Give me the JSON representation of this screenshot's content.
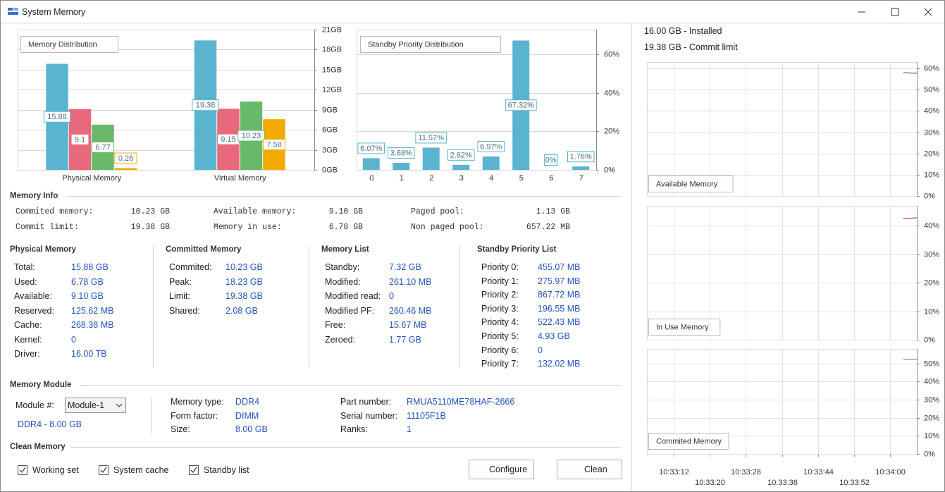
{
  "window": {
    "title": "System Memory"
  },
  "chart_data": [
    {
      "type": "bar",
      "title": "Memory Distribution",
      "categories": [
        "Physical Memory",
        "Virtual Memory"
      ],
      "series": [
        {
          "color": "#5ab4cf",
          "values": [
            15.88,
            19.38
          ]
        },
        {
          "color": "#e8687c",
          "values": [
            9.1,
            9.15
          ]
        },
        {
          "color": "#68b96a",
          "values": [
            6.77,
            10.23
          ]
        },
        {
          "color": "#f2ab00",
          "values": [
            0.26,
            7.58
          ]
        }
      ],
      "ylim": [
        0,
        21
      ],
      "yticks": [
        {
          "value": 0,
          "label": "0GB"
        },
        {
          "value": 3,
          "label": "3GB"
        },
        {
          "value": 6,
          "label": "6GB"
        },
        {
          "value": 9,
          "label": "9GB"
        },
        {
          "value": 12,
          "label": "12GB"
        },
        {
          "value": 15,
          "label": "15GB"
        },
        {
          "value": 18,
          "label": "18GB"
        },
        {
          "value": 21,
          "label": "21GB"
        }
      ],
      "grid": true
    },
    {
      "type": "bar",
      "title": "Standby Priority Distribution",
      "categories": [
        "0",
        "1",
        "2",
        "3",
        "4",
        "5",
        "6",
        "7"
      ],
      "values": [
        6.07,
        3.68,
        11.57,
        2.62,
        6.97,
        67.32,
        0,
        1.76
      ],
      "value_labels": [
        "6.07%",
        "3.68%",
        "11.57%",
        "2.62%",
        "6.97%",
        "67.32%",
        "0%",
        "1.76%"
      ],
      "color": "#5ab4cf",
      "ylim": [
        0,
        73
      ],
      "yticks": [
        {
          "value": 0,
          "label": "0%"
        },
        {
          "value": 20,
          "label": "20%"
        },
        {
          "value": 40,
          "label": "40%"
        },
        {
          "value": 60,
          "label": "60%"
        }
      ],
      "grid": true
    },
    {
      "type": "line",
      "title": "Available Memory",
      "color": "#3b6fb6",
      "x": [
        "10:34:03",
        "10:34:06"
      ],
      "values": [
        58,
        57.7
      ],
      "xlim": [
        "10:33:06",
        "10:34:06"
      ],
      "xticks": [
        "10:33:12",
        "10:33:20",
        "10:33:28",
        "10:33:36",
        "10:33:44",
        "10:33:52",
        "10:34:00"
      ],
      "ylim": [
        0,
        63
      ],
      "yticks": [
        {
          "value": 0,
          "label": "0%"
        },
        {
          "value": 10,
          "label": "10%"
        },
        {
          "value": 20,
          "label": "20%"
        },
        {
          "value": 30,
          "label": "30%"
        },
        {
          "value": 40,
          "label": "40%"
        },
        {
          "value": 50,
          "label": "50%"
        },
        {
          "value": 60,
          "label": "60%"
        }
      ],
      "grid": true
    },
    {
      "type": "line",
      "title": "In Use Memory",
      "color": "#c0392b",
      "x": [
        "10:34:03",
        "10:34:06"
      ],
      "values": [
        42.5,
        42.8
      ],
      "xlim": [
        "10:33:06",
        "10:34:06"
      ],
      "xticks": [
        "10:33:12",
        "10:33:20",
        "10:33:28",
        "10:33:36",
        "10:33:44",
        "10:33:52",
        "10:34:00"
      ],
      "ylim": [
        0,
        47
      ],
      "yticks": [
        {
          "value": 0,
          "label": "0%"
        },
        {
          "value": 10,
          "label": "10%"
        },
        {
          "value": 20,
          "label": "20%"
        },
        {
          "value": 30,
          "label": "30%"
        },
        {
          "value": 40,
          "label": "40%"
        }
      ],
      "grid": true
    },
    {
      "type": "line",
      "title": "Commited Memory",
      "color": "#6ab04c",
      "x": [
        "10:34:03",
        "10:34:06"
      ],
      "values": [
        52.3,
        52.3
      ],
      "xlim": [
        "10:33:06",
        "10:34:06"
      ],
      "xticks": [
        "10:33:12",
        "10:33:20",
        "10:33:28",
        "10:33:36",
        "10:33:44",
        "10:33:52",
        "10:34:00"
      ],
      "ylim": [
        0,
        58
      ],
      "yticks": [
        {
          "value": 0,
          "label": "0%"
        },
        {
          "value": 10,
          "label": "10%"
        },
        {
          "value": 20,
          "label": "20%"
        },
        {
          "value": 30,
          "label": "30%"
        },
        {
          "value": 40,
          "label": "40%"
        },
        {
          "value": 50,
          "label": "50%"
        }
      ],
      "grid": true
    }
  ],
  "summary": [
    "16.00 GB - Installed",
    "19.38 GB - Commit limit"
  ],
  "memory_info": {
    "title": "Memory Info",
    "rows": [
      [
        "Commited memory:",
        "10.23 GB"
      ],
      [
        "Commit limit:",
        "19.38 GB"
      ],
      [
        "Available memory:",
        "9.10 GB"
      ],
      [
        "Memory in use:",
        "6.78 GB"
      ],
      [
        "Paged pool:",
        "1.13 GB"
      ],
      [
        "Non paged pool:",
        "657.22 MB"
      ]
    ]
  },
  "groups": [
    {
      "title": "Physical Memory",
      "rows": [
        [
          "Total:",
          "15.88 GB"
        ],
        [
          "Used:",
          "6.78 GB"
        ],
        [
          "Available:",
          "9.10 GB"
        ],
        [
          "Reserved:",
          "125.62 MB"
        ],
        [
          "Cache:",
          "268.38 MB"
        ],
        [
          "Kernel:",
          "0"
        ],
        [
          "Driver:",
          "16.00 TB"
        ]
      ]
    },
    {
      "title": "Committed Memory",
      "rows": [
        [
          "Commited:",
          "10.23 GB"
        ],
        [
          "Peak:",
          "18.23 GB"
        ],
        [
          "Limit:",
          "19.38 GB"
        ],
        [
          "Shared:",
          "2.08 GB"
        ]
      ]
    },
    {
      "title": "Memory List",
      "rows": [
        [
          "Standby:",
          "7.32 GB"
        ],
        [
          "Modified:",
          "261.10 MB"
        ],
        [
          "Modified read:",
          "0"
        ],
        [
          "Modified PF:",
          "260.46 MB"
        ],
        [
          "Free:",
          "15.67 MB"
        ],
        [
          "Zeroed:",
          "1.77 GB"
        ]
      ]
    },
    {
      "title": "Standby Priority List",
      "rows": [
        [
          "Priority 0:",
          "455.07 MB"
        ],
        [
          "Priority 1:",
          "275.97 MB"
        ],
        [
          "Priority 2:",
          "867.72 MB"
        ],
        [
          "Priority 3:",
          "196.55 MB"
        ],
        [
          "Priority 4:",
          "522.43 MB"
        ],
        [
          "Priority 5:",
          "4.93 GB"
        ],
        [
          "Priority 6:",
          "0"
        ],
        [
          "Priority 7:",
          "132.02 MB"
        ]
      ]
    }
  ],
  "module": {
    "title": "Memory Module",
    "select_label": "Module #:",
    "selected": "Module-1",
    "summary": "DDR4 - 8.00 GB",
    "columns": [
      [
        [
          "Memory type:",
          "DDR4"
        ],
        [
          "Form factor:",
          "DIMM"
        ],
        [
          "Size:",
          "8.00 GB"
        ]
      ],
      [
        [
          "Part number:",
          "RMUA5110ME78HAF-2666"
        ],
        [
          "Serial number:",
          "11105F1B"
        ],
        [
          "Ranks:",
          "1"
        ]
      ]
    ]
  },
  "clean": {
    "title": "Clean Memory",
    "options": [
      {
        "label": "Working set",
        "checked": true
      },
      {
        "label": "System cache",
        "checked": true
      },
      {
        "label": "Standby list",
        "checked": true
      }
    ],
    "buttons": [
      "Configure",
      "Clean"
    ]
  }
}
